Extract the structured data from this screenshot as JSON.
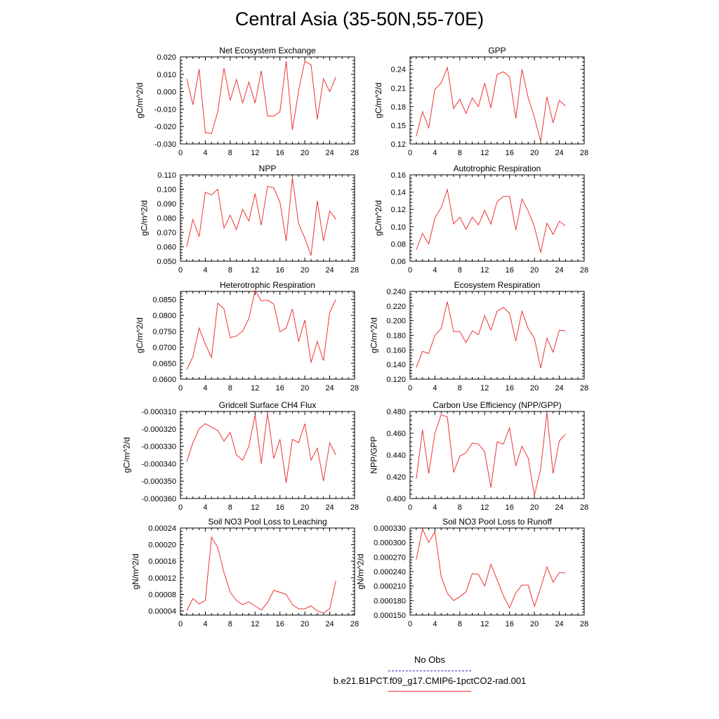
{
  "page": {
    "title": "Central Asia (35-50N,55-70E)"
  },
  "legend": {
    "obs_label": "No Obs",
    "obs_color": "#3333cc",
    "run_label": "b.e21.B1PCT.f09_g17.CMIP6-1pctCO2-rad.001",
    "run_color": "#ee3333"
  },
  "chart_data": [
    {
      "type": "line",
      "title": "Net Ecosystem Exchange",
      "ylabel": "gC/m^2/d",
      "xlim": [
        0,
        28
      ],
      "ylim": [
        -0.03,
        0.02
      ],
      "xticks": [
        0,
        4,
        8,
        12,
        16,
        20,
        24,
        28
      ],
      "yticks": [
        -0.03,
        -0.02,
        -0.01,
        0.0,
        0.01,
        0.02
      ],
      "ytick_labels": [
        "-0.030",
        "-0.020",
        "-0.010",
        "0.000",
        "0.010",
        "0.020"
      ],
      "series": [
        {
          "x": [
            1,
            2,
            3,
            4,
            5,
            6,
            7,
            8,
            9,
            10,
            11,
            12,
            13,
            14,
            15,
            16,
            17,
            18,
            19,
            20,
            21,
            22,
            23,
            24,
            25
          ],
          "values": [
            0.0075,
            -0.0075,
            0.013,
            -0.0235,
            -0.024,
            -0.0115,
            0.0135,
            -0.005,
            0.007,
            -0.0065,
            0.0055,
            -0.0065,
            0.012,
            -0.014,
            -0.014,
            -0.0115,
            0.0175,
            -0.022,
            0.0005,
            0.0175,
            0.0155,
            -0.016,
            0.0075,
            0.0,
            0.0085
          ]
        }
      ]
    },
    {
      "type": "line",
      "title": "GPP",
      "ylabel": "gC/m^2/d",
      "xlim": [
        0,
        28
      ],
      "ylim": [
        0.12,
        0.26
      ],
      "xticks": [
        0,
        4,
        8,
        12,
        16,
        20,
        24,
        28
      ],
      "yticks": [
        0.12,
        0.15,
        0.18,
        0.21,
        0.24
      ],
      "ytick_labels": [
        "0.12",
        "0.15",
        "0.18",
        "0.21",
        "0.24"
      ],
      "series": [
        {
          "x": [
            1,
            2,
            3,
            4,
            5,
            6,
            7,
            8,
            9,
            10,
            11,
            12,
            13,
            14,
            15,
            16,
            17,
            18,
            19,
            20,
            21,
            22,
            23,
            24,
            25
          ],
          "values": [
            0.133,
            0.172,
            0.146,
            0.208,
            0.218,
            0.243,
            0.177,
            0.192,
            0.169,
            0.194,
            0.18,
            0.218,
            0.178,
            0.232,
            0.236,
            0.228,
            0.161,
            0.24,
            0.194,
            0.163,
            0.124,
            0.196,
            0.154,
            0.19,
            0.181
          ]
        }
      ]
    },
    {
      "type": "line",
      "title": "NPP",
      "ylabel": "gC/m^2/d",
      "xlim": [
        0,
        28
      ],
      "ylim": [
        0.05,
        0.11
      ],
      "xticks": [
        0,
        4,
        8,
        12,
        16,
        20,
        24,
        28
      ],
      "yticks": [
        0.05,
        0.06,
        0.07,
        0.08,
        0.09,
        0.1,
        0.11
      ],
      "ytick_labels": [
        "0.050",
        "0.060",
        "0.070",
        "0.080",
        "0.090",
        "0.100",
        "0.110"
      ],
      "series": [
        {
          "x": [
            1,
            2,
            3,
            4,
            5,
            6,
            7,
            8,
            9,
            10,
            11,
            12,
            13,
            14,
            15,
            16,
            17,
            18,
            19,
            20,
            21,
            22,
            23,
            24,
            25
          ],
          "values": [
            0.06,
            0.079,
            0.067,
            0.098,
            0.096,
            0.1,
            0.073,
            0.082,
            0.072,
            0.086,
            0.078,
            0.097,
            0.075,
            0.102,
            0.101,
            0.091,
            0.064,
            0.108,
            0.076,
            0.066,
            0.054,
            0.092,
            0.064,
            0.085,
            0.079
          ]
        }
      ]
    },
    {
      "type": "line",
      "title": "Autotrophic Respiration",
      "ylabel": "gC/m^2/d",
      "xlim": [
        0,
        28
      ],
      "ylim": [
        0.06,
        0.16
      ],
      "xticks": [
        0,
        4,
        8,
        12,
        16,
        20,
        24,
        28
      ],
      "yticks": [
        0.06,
        0.08,
        0.1,
        0.12,
        0.14,
        0.16
      ],
      "ytick_labels": [
        "0.06",
        "0.08",
        "0.10",
        "0.12",
        "0.14",
        "0.16"
      ],
      "series": [
        {
          "x": [
            1,
            2,
            3,
            4,
            5,
            6,
            7,
            8,
            9,
            10,
            11,
            12,
            13,
            14,
            15,
            16,
            17,
            18,
            19,
            20,
            21,
            22,
            23,
            24,
            25
          ],
          "values": [
            0.073,
            0.092,
            0.08,
            0.11,
            0.122,
            0.143,
            0.103,
            0.111,
            0.097,
            0.111,
            0.102,
            0.119,
            0.103,
            0.129,
            0.135,
            0.135,
            0.096,
            0.132,
            0.118,
            0.1,
            0.07,
            0.104,
            0.091,
            0.106,
            0.101
          ]
        }
      ]
    },
    {
      "type": "line",
      "title": "Heterotrophic Respiration",
      "ylabel": "gC/m^2/d",
      "xlim": [
        0,
        28
      ],
      "ylim": [
        0.06,
        0.0875
      ],
      "xticks": [
        0,
        4,
        8,
        12,
        16,
        20,
        24,
        28
      ],
      "yticks": [
        0.06,
        0.065,
        0.07,
        0.075,
        0.08,
        0.085
      ],
      "ytick_labels": [
        "0.0600",
        "0.0650",
        "0.0700",
        "0.0750",
        "0.0800",
        "0.0850"
      ],
      "series": [
        {
          "x": [
            1,
            2,
            3,
            4,
            5,
            6,
            7,
            8,
            9,
            10,
            11,
            12,
            13,
            14,
            15,
            16,
            17,
            18,
            19,
            20,
            21,
            22,
            23,
            24,
            25
          ],
          "values": [
            0.063,
            0.067,
            0.076,
            0.071,
            0.0668,
            0.0838,
            0.082,
            0.073,
            0.0735,
            0.075,
            0.079,
            0.0878,
            0.0845,
            0.0848,
            0.0835,
            0.0748,
            0.076,
            0.082,
            0.0718,
            0.0785,
            0.0652,
            0.0718,
            0.0658,
            0.081,
            0.085
          ]
        }
      ]
    },
    {
      "type": "line",
      "title": "Ecosystem Respiration",
      "ylabel": "gC/m^2/d",
      "xlim": [
        0,
        28
      ],
      "ylim": [
        0.12,
        0.24
      ],
      "xticks": [
        0,
        4,
        8,
        12,
        16,
        20,
        24,
        28
      ],
      "yticks": [
        0.12,
        0.14,
        0.16,
        0.18,
        0.2,
        0.22,
        0.24
      ],
      "ytick_labels": [
        "0.120",
        "0.140",
        "0.160",
        "0.180",
        "0.200",
        "0.220",
        "0.240"
      ],
      "series": [
        {
          "x": [
            1,
            2,
            3,
            4,
            5,
            6,
            7,
            8,
            9,
            10,
            11,
            12,
            13,
            14,
            15,
            16,
            17,
            18,
            19,
            20,
            21,
            22,
            23,
            24,
            25
          ],
          "values": [
            0.136,
            0.158,
            0.155,
            0.18,
            0.189,
            0.226,
            0.185,
            0.185,
            0.17,
            0.186,
            0.181,
            0.207,
            0.187,
            0.213,
            0.218,
            0.21,
            0.172,
            0.213,
            0.189,
            0.176,
            0.135,
            0.176,
            0.157,
            0.187,
            0.186
          ]
        }
      ]
    },
    {
      "type": "line",
      "title": "Gridcell Surface CH4 Flux",
      "ylabel": "gC/m^2/d",
      "xlim": [
        0,
        28
      ],
      "ylim": [
        -0.00036,
        -0.00031
      ],
      "xticks": [
        0,
        4,
        8,
        12,
        16,
        20,
        24,
        28
      ],
      "yticks": [
        -0.00036,
        -0.00035,
        -0.00034,
        -0.00033,
        -0.00032,
        -0.00031
      ],
      "ytick_labels": [
        "-0.000360",
        "-0.000350",
        "-0.000340",
        "-0.000330",
        "-0.000320",
        "-0.000310"
      ],
      "series": [
        {
          "x": [
            1,
            2,
            3,
            4,
            5,
            6,
            7,
            8,
            9,
            10,
            11,
            12,
            13,
            14,
            15,
            16,
            17,
            18,
            19,
            20,
            21,
            22,
            23,
            24,
            25
          ],
          "values": [
            -0.000339,
            -0.000328,
            -0.00032,
            -0.000317,
            -0.000319,
            -0.000321,
            -0.000327,
            -0.000322,
            -0.000335,
            -0.000338,
            -0.00033,
            -0.000312,
            -0.00034,
            -0.000311,
            -0.000337,
            -0.000326,
            -0.000351,
            -0.000326,
            -0.000328,
            -0.000317,
            -0.000338,
            -0.000331,
            -0.00035,
            -0.000328,
            -0.000335
          ]
        }
      ]
    },
    {
      "type": "line",
      "title": "Carbon Use Efficiency (NPP/GPP)",
      "ylabel": "NPP/GPP",
      "xlim": [
        0,
        28
      ],
      "ylim": [
        0.4,
        0.48
      ],
      "xticks": [
        0,
        4,
        8,
        12,
        16,
        20,
        24,
        28
      ],
      "yticks": [
        0.4,
        0.42,
        0.44,
        0.46,
        0.48
      ],
      "ytick_labels": [
        "0.400",
        "0.420",
        "0.440",
        "0.460",
        "0.480"
      ],
      "series": [
        {
          "x": [
            1,
            2,
            3,
            4,
            5,
            6,
            7,
            8,
            9,
            10,
            11,
            12,
            13,
            14,
            15,
            16,
            17,
            18,
            19,
            20,
            21,
            22,
            23,
            24,
            25
          ],
          "values": [
            0.418,
            0.463,
            0.423,
            0.46,
            0.477,
            0.475,
            0.424,
            0.439,
            0.442,
            0.451,
            0.45,
            0.443,
            0.41,
            0.452,
            0.45,
            0.465,
            0.43,
            0.448,
            0.437,
            0.403,
            0.427,
            0.479,
            0.423,
            0.453,
            0.459
          ]
        }
      ]
    },
    {
      "type": "line",
      "title": "Soil NO3 Pool Loss to Leaching",
      "ylabel": "gN/m^2/d",
      "xlim": [
        0,
        28
      ],
      "ylim": [
        3e-05,
        0.00024
      ],
      "xticks": [
        0,
        4,
        8,
        12,
        16,
        20,
        24,
        28
      ],
      "yticks": [
        4e-05,
        8e-05,
        0.00012,
        0.00016,
        0.0002,
        0.00024
      ],
      "ytick_labels": [
        "0.00004",
        "0.00008",
        "0.00012",
        "0.00016",
        "0.00020",
        "0.00024"
      ],
      "series": [
        {
          "x": [
            1,
            2,
            3,
            4,
            5,
            6,
            7,
            8,
            9,
            10,
            11,
            12,
            13,
            14,
            15,
            16,
            17,
            18,
            19,
            20,
            21,
            22,
            23,
            24,
            25
          ],
          "values": [
            4e-05,
            7e-05,
            5.7e-05,
            6.5e-05,
            0.000218,
            0.000193,
            0.000133,
            8.5e-05,
            6.5e-05,
            5.5e-05,
            6.2e-05,
            5.2e-05,
            4.2e-05,
            6e-05,
            9e-05,
            8.5e-05,
            8e-05,
            5.5e-05,
            4.5e-05,
            4.5e-05,
            5.2e-05,
            4e-05,
            3.5e-05,
            4.5e-05,
            0.000113
          ]
        }
      ]
    },
    {
      "type": "line",
      "title": "Soil NO3 Pool Loss to Runoff",
      "ylabel": "gN/m^2/d",
      "xlim": [
        0,
        28
      ],
      "ylim": [
        0.00015,
        0.00033
      ],
      "xticks": [
        0,
        4,
        8,
        12,
        16,
        20,
        24,
        28
      ],
      "yticks": [
        0.00015,
        0.00018,
        0.00021,
        0.00024,
        0.00027,
        0.0003,
        0.00033
      ],
      "ytick_labels": [
        "0.000150",
        "0.000180",
        "0.000210",
        "0.000240",
        "0.000270",
        "0.000300",
        "0.000330"
      ],
      "series": [
        {
          "x": [
            1,
            2,
            3,
            4,
            5,
            6,
            7,
            8,
            9,
            10,
            11,
            12,
            13,
            14,
            15,
            16,
            17,
            18,
            19,
            20,
            21,
            22,
            23,
            24,
            25
          ],
          "values": [
            0.000265,
            0.000328,
            0.0003,
            0.000322,
            0.00023,
            0.000195,
            0.00018,
            0.000188,
            0.000198,
            0.000236,
            0.000234,
            0.00021,
            0.000255,
            0.000223,
            0.00019,
            0.000165,
            0.000196,
            0.000212,
            0.000212,
            0.000168,
            0.000206,
            0.00025,
            0.000218,
            0.000238,
            0.000237
          ]
        }
      ]
    }
  ]
}
